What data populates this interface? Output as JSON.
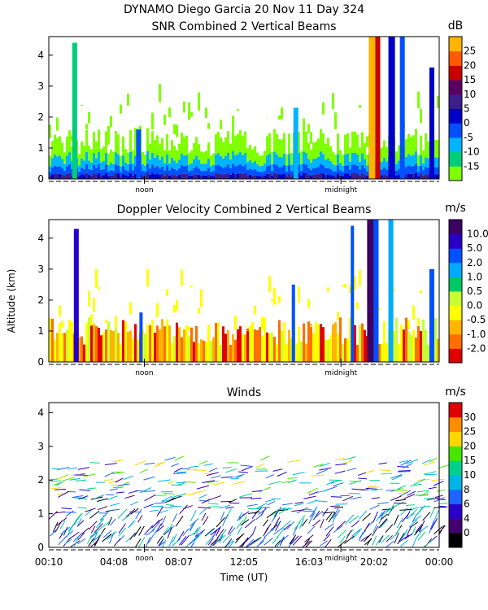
{
  "header": {
    "line1": "DYNAMO Diego Garcia  20 Nov 11 Day 324"
  },
  "shared": {
    "y_axis_label": "Altitude (km)",
    "x_axis_label": "Time (UT)",
    "day_marks": [
      "noon",
      "midnight"
    ]
  },
  "chart_data": [
    {
      "type": "heatmap",
      "title": "SNR Combined 2 Vertical Beams",
      "colorbar_unit": "dB",
      "colorbar_ticks": [
        "-15",
        "-10",
        "-5",
        "0",
        "5",
        "10",
        "15",
        "20",
        "25"
      ],
      "colorbar_colors": [
        "#7fff00",
        "#00cd7a",
        "#00b4ff",
        "#0050ff",
        "#0000c8",
        "#3c1e8c",
        "#5a0064",
        "#c80000",
        "#ff5a00",
        "#ffb400"
      ],
      "ylim": [
        0,
        4.6
      ],
      "yticks": [
        "0",
        "1",
        "2",
        "3",
        "4"
      ],
      "x_hours": [
        0.17,
        24.0
      ],
      "features": [
        {
          "start": 1.6,
          "end": 1.9,
          "top": 4.4,
          "level": 1
        },
        {
          "start": 5.5,
          "end": 5.8,
          "top": 1.6,
          "level": 3
        },
        {
          "start": 15.1,
          "end": 15.4,
          "top": 2.3,
          "level": 2
        },
        {
          "start": 19.7,
          "end": 20.1,
          "top": 4.6,
          "level": 9
        },
        {
          "start": 20.1,
          "end": 20.4,
          "top": 4.6,
          "level": 7
        },
        {
          "start": 20.9,
          "end": 21.3,
          "top": 4.6,
          "level": 4
        },
        {
          "start": 21.6,
          "end": 21.9,
          "top": 4.6,
          "level": 3
        },
        {
          "start": 23.4,
          "end": 23.7,
          "top": 3.6,
          "level": 4
        }
      ]
    },
    {
      "type": "heatmap",
      "title": "Doppler Velocity Combined 2 Vertical Beams",
      "colorbar_unit": "m/s",
      "colorbar_ticks": [
        "-2.0",
        "-1.0",
        "-0.5",
        "0.0",
        "0.5",
        "1.0",
        "2.0",
        "5.0",
        "10.0"
      ],
      "colorbar_colors": [
        "#e10000",
        "#ff6e00",
        "#ffb400",
        "#ffff00",
        "#c8ff32",
        "#00c864",
        "#00aaff",
        "#0050ff",
        "#2800c8",
        "#3c0064"
      ],
      "ylim": [
        0,
        4.6
      ],
      "yticks": [
        "0",
        "1",
        "2",
        "3",
        "4"
      ],
      "x_hours": [
        0.17,
        24.0
      ],
      "features": [
        {
          "start": 1.7,
          "end": 2.0,
          "top": 4.3,
          "level": 8
        },
        {
          "start": 5.7,
          "end": 5.9,
          "top": 1.6,
          "level": 7
        },
        {
          "start": 15.0,
          "end": 15.2,
          "top": 2.5,
          "level": 7
        },
        {
          "start": 18.6,
          "end": 18.8,
          "top": 4.4,
          "level": 7
        },
        {
          "start": 19.6,
          "end": 20.0,
          "top": 4.6,
          "level": 9
        },
        {
          "start": 20.0,
          "end": 20.3,
          "top": 4.6,
          "level": 7
        },
        {
          "start": 20.9,
          "end": 21.2,
          "top": 4.6,
          "level": 6
        },
        {
          "start": 23.4,
          "end": 23.7,
          "top": 3.0,
          "level": 7
        }
      ]
    },
    {
      "type": "scatter",
      "title": "Winds",
      "colorbar_unit": "m/s",
      "colorbar_ticks": [
        "0",
        "4",
        "6",
        "8",
        "10",
        "15",
        "20",
        "25",
        "30"
      ],
      "colorbar_colors": [
        "#000000",
        "#46006e",
        "#2800c8",
        "#1e64ff",
        "#00b4e6",
        "#00d28c",
        "#46e600",
        "#ffd700",
        "#ff8c00",
        "#e10000"
      ],
      "ylim": [
        0,
        4.3
      ],
      "yticks": [
        "0",
        "1",
        "2",
        "3",
        "4"
      ],
      "x_tick_labels": [
        "00:10",
        "04:08",
        "08:07",
        "12:05",
        "16:03",
        "20:02",
        "00:00"
      ],
      "x_hours": [
        0.17,
        24.0
      ]
    }
  ]
}
